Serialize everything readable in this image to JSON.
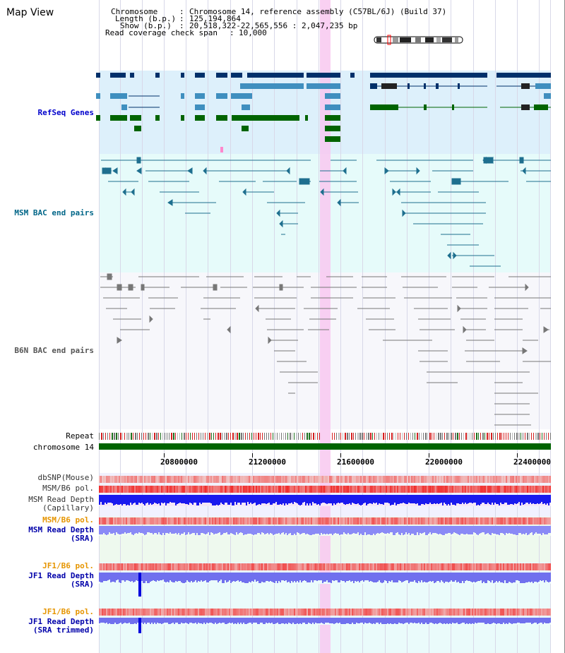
{
  "title": "Map View",
  "info": {
    "chromosome_key": "Chromosome",
    "chromosome_value": "Chromosome 14, reference assembly (C57BL/6J) (Build 37)",
    "length_key": "Length (b.p.)",
    "length_value": "125,194,864",
    "show_key": "Show (b.p.)",
    "show_value": "20,518,322-22,565,556 : 2,047,235 bp",
    "read_key": "Read coverage check span",
    "read_value": "10,000"
  },
  "tracks": {
    "refseq": "RefSeq Genes",
    "msm_bac": "MSM BAC end pairs",
    "b6n_bac": "B6N BAC end pairs",
    "repeat": "Repeat",
    "chromosome": "chromosome 14",
    "dbsnp": "dbSNP(Mouse)",
    "msm_b6_pol_1": "MSM/B6 pol.",
    "msm_depth_cap_1": "MSM Read Depth",
    "msm_depth_cap_2": "(Capillary)",
    "msm_b6_pol_2": "MSM/B6 pol.",
    "msm_depth_sra_1": "MSM Read Depth",
    "msm_depth_sra_2": "(SRA)",
    "jf1_pol_1": "JF1/B6 pol.",
    "jf1_depth_1": "JF1 Read Depth",
    "jf1_depth_2": "(SRA)",
    "jf1_pol_2": "JF1/B6 pol.",
    "jf1_trim_1": "JF1 Read Depth",
    "jf1_trim_2": "(SRA trimmed)"
  },
  "axis": {
    "ticks": [
      "20800000",
      "21200000",
      "21600000",
      "22000000",
      "22400000"
    ]
  },
  "colors": {
    "refseq_label": "#0000cc",
    "msm_label": "#006688",
    "b6n_label": "#555555",
    "orange_label": "#e69500",
    "blue_label": "#0000aa",
    "highlight": "#f8c8f0",
    "gene_dark": "#00306a",
    "gene_mid": "#3f8fbf",
    "gene_green": "#006400",
    "chrom_bar": "#006400"
  }
}
